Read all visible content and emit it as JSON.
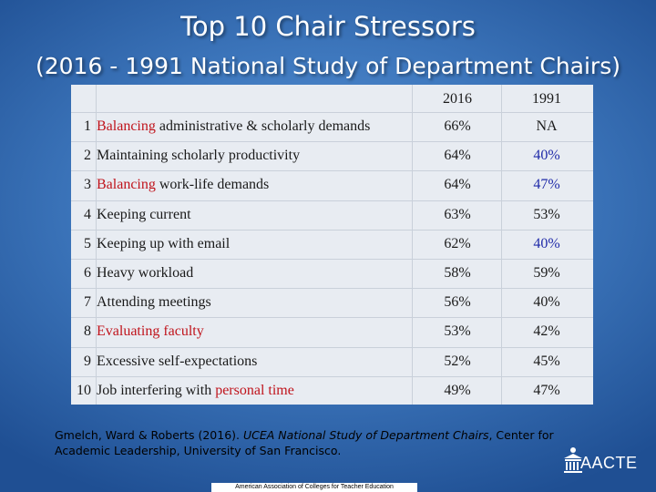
{
  "title": {
    "line1": "Top 10 Chair Stressors",
    "line2": "(2016 - 1991 National Study of Department Chairs)"
  },
  "table": {
    "headers": {
      "col2016": "2016",
      "col1991": "1991"
    },
    "rows": [
      {
        "num": "1",
        "highlight": "Balancing",
        "rest": " administrative & scholarly demands",
        "v2016": "66%",
        "v1991": "NA",
        "v1991_color": "black"
      },
      {
        "num": "2",
        "highlight": "",
        "rest": "Maintaining scholarly productivity",
        "v2016": "64%",
        "v1991": "40%",
        "v1991_color": "blue"
      },
      {
        "num": "3",
        "highlight": "Balancing",
        "rest": " work-life demands",
        "v2016": "64%",
        "v1991": "47%",
        "v1991_color": "blue"
      },
      {
        "num": "4",
        "highlight": "",
        "rest": "Keeping current",
        "v2016": "63%",
        "v1991": "53%",
        "v1991_color": "black"
      },
      {
        "num": "5",
        "highlight": "",
        "rest": "Keeping up with email",
        "v2016": "62%",
        "v1991": "40%",
        "v1991_color": "blue"
      },
      {
        "num": "6",
        "highlight": "",
        "rest": "Heavy workload",
        "v2016": "58%",
        "v1991": "59%",
        "v1991_color": "black"
      },
      {
        "num": "7",
        "highlight": "",
        "rest": "Attending meetings",
        "v2016": "56%",
        "v1991": "40%",
        "v1991_color": "black"
      },
      {
        "num": "8",
        "highlight": "Evaluating faculty",
        "rest": "",
        "v2016": "53%",
        "v1991": "42%",
        "v1991_color": "black"
      },
      {
        "num": "9",
        "highlight": "",
        "rest": "Excessive self-expectations",
        "v2016": "52%",
        "v1991": "45%",
        "v1991_color": "black"
      },
      {
        "num": "10",
        "prefix": "Job interfering with ",
        "highlight": "personal time",
        "rest": "",
        "v2016": "49%",
        "v1991": "47%",
        "v1991_color": "black"
      }
    ]
  },
  "citation": {
    "authors": "Gmelch, Ward & Roberts (2016). ",
    "work": "UCEA National Study of Department Chairs",
    "publisher": ", Center for Academic Leadership, University of San Francisco."
  },
  "footer": {
    "org": "American Association of Colleges for Teacher Education"
  },
  "logo": {
    "text": "AACTE",
    "icon": "building-icon"
  },
  "colors": {
    "highlight_red": "#c0141c",
    "value_blue": "#1f2aa8",
    "background": "#3f79bf"
  }
}
